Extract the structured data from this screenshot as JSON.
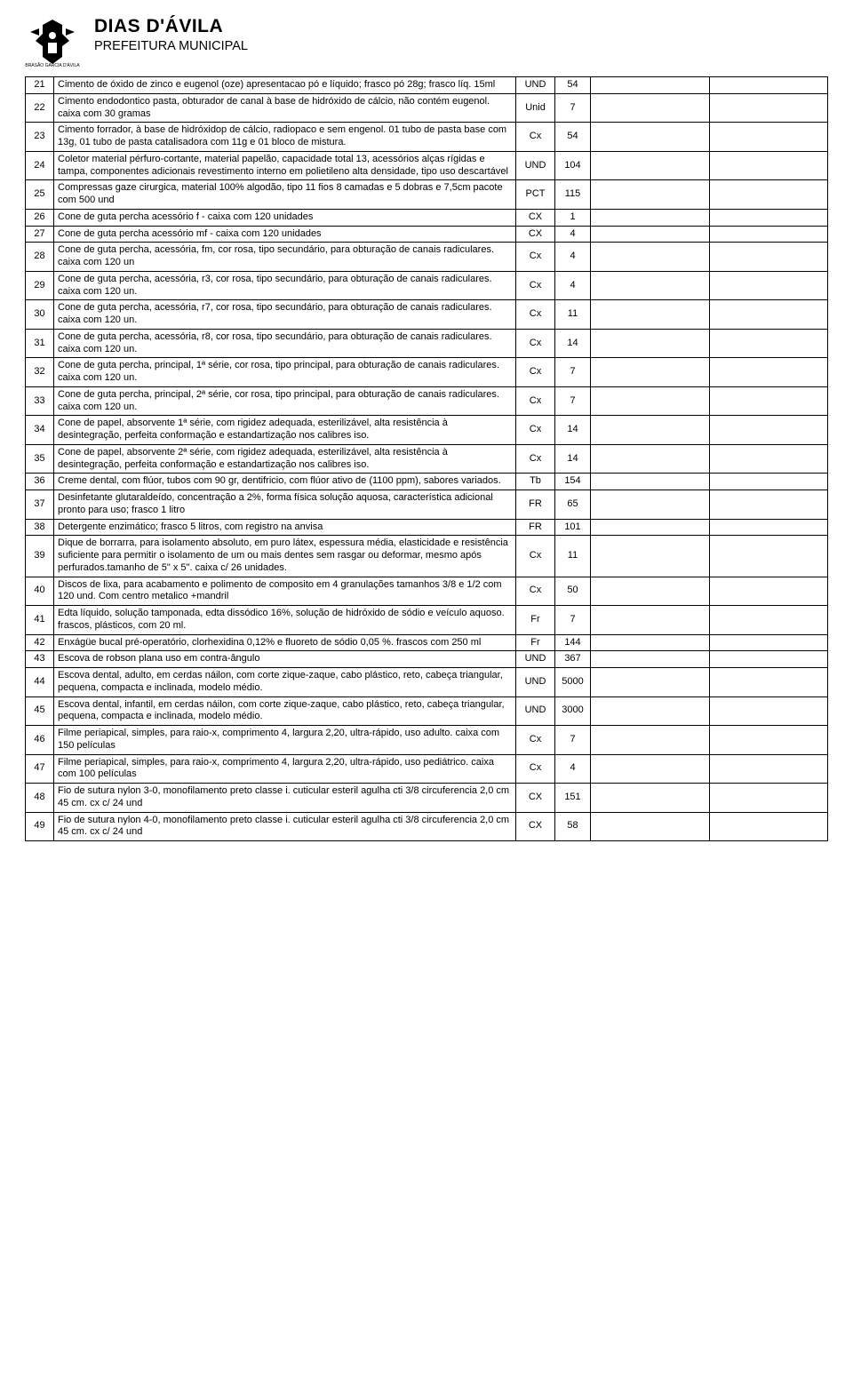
{
  "header": {
    "title": "DIAS D'ÁVILA",
    "subtitle": "PREFEITURA MUNICIPAL",
    "logo_caption": "BRASÃO GARCIA D'ÁVILA"
  },
  "table": {
    "columns": {
      "num_width": 32,
      "desc_width": 520,
      "unit_width": 44,
      "qty_width": 40
    },
    "font_size": 11,
    "border_color": "#000000",
    "background": "#ffffff"
  },
  "rows": [
    {
      "n": "21",
      "desc": "Cimento de óxido de zinco e eugenol (oze)  apresentacao pó e líquido; frasco pó 28g; frasco líq. 15ml",
      "unit": "UND",
      "qty": "54"
    },
    {
      "n": "22",
      "desc": "Cimento endodontico pasta, obturador de canal à base de hidróxido de cálcio, não contém eugenol. caixa com 30 gramas",
      "unit": "Unid",
      "qty": "7"
    },
    {
      "n": "23",
      "desc": "Cimento forrador, à base de hidróxidop de cálcio, radiopaco e sem engenol. 01 tubo de pasta base com 13g, 01 tubo de pasta catalisadora com 11g  e 01 bloco de mistura.",
      "unit": "Cx",
      "qty": "54"
    },
    {
      "n": "24",
      "desc": "Coletor material pérfuro-cortante, material papelão, capacidade total 13, acessórios alças rígidas e tampa, componentes adicionais revestimento interno em polietileno alta densidade, tipo uso descartável",
      "unit": "UND",
      "qty": "104"
    },
    {
      "n": "25",
      "desc": "Compressas gaze cirurgica, material 100% algodão, tipo 11 fios 8 camadas e 5 dobras e 7,5cm pacote com 500 und",
      "unit": "PCT",
      "qty": "115"
    },
    {
      "n": "26",
      "desc": "Cone de guta percha acessório f  - caixa com 120 unidades",
      "unit": "CX",
      "qty": "1"
    },
    {
      "n": "27",
      "desc": "Cone de guta percha acessório mf - caixa com 120 unidades",
      "unit": "CX",
      "qty": "4"
    },
    {
      "n": "28",
      "desc": "Cone de guta percha, acessória, fm, cor rosa, tipo secundário, para obturação de canais radiculares. caixa com 120 un",
      "unit": "Cx",
      "qty": "4"
    },
    {
      "n": "29",
      "desc": "Cone de guta percha, acessória, r3, cor rosa, tipo secundário, para obturação de canais radiculares. caixa com 120 un.",
      "unit": "Cx",
      "qty": "4"
    },
    {
      "n": "30",
      "desc": "Cone de guta percha, acessória, r7, cor rosa, tipo secundário, para obturação de canais radiculares. caixa com 120 un.",
      "unit": "Cx",
      "qty": "11"
    },
    {
      "n": "31",
      "desc": "Cone de guta percha, acessória, r8, cor rosa, tipo secundário, para obturação de canais radiculares. caixa com 120 un.",
      "unit": "Cx",
      "qty": "14"
    },
    {
      "n": "32",
      "desc": "Cone de guta percha, principal, 1ª série, cor rosa, tipo principal, para obturação de canais radiculares. caixa com 120 un.",
      "unit": "Cx",
      "qty": "7"
    },
    {
      "n": "33",
      "desc": "Cone de guta percha, principal, 2ª série, cor rosa, tipo principal, para obturação de canais radiculares. caixa com 120 un.",
      "unit": "Cx",
      "qty": "7"
    },
    {
      "n": "34",
      "desc": "Cone de papel, absorvente 1ª série, com  rigidez adequada, esterilizável, alta resistência à desintegração, perfeita conformação e estandartização nos calibres iso.",
      "unit": "Cx",
      "qty": "14"
    },
    {
      "n": "35",
      "desc": "Cone de papel, absorvente 2ª série, com rigidez adequada, esterilizável, alta resistência à desintegração, perfeita conformação e estandartização nos calibres iso.",
      "unit": "Cx",
      "qty": "14"
    },
    {
      "n": "36",
      "desc": "Creme dental, com flúor, tubos com 90 gr, dentifricio, com flúor ativo de (1100 ppm), sabores variados.",
      "unit": "Tb",
      "qty": "154"
    },
    {
      "n": "37",
      "desc": "Desinfetante  glutaraldeído, concentração a 2%, forma física solução aquosa, característica adicional pronto para uso; frasco 1 litro",
      "unit": "FR",
      "qty": "65"
    },
    {
      "n": "38",
      "desc": "Detergente enzimático;  frasco  5 litros, com registro na anvisa",
      "unit": "FR",
      "qty": "101"
    },
    {
      "n": "39",
      "desc": "Dique de borrarra, para isolamento absoluto, em puro látex, espessura média, elasticidade e resistência suficiente para permitir o isolamento de um ou mais dentes sem rasgar ou deformar, mesmo após perfurados.tamanho de 5\" x 5\". caixa c/ 26 unidades.",
      "unit": "Cx",
      "qty": "11"
    },
    {
      "n": "40",
      "desc": "Discos de lixa, para acabamento e polimento de composito em 4 granulações tamanhos 3/8 e 1/2 com 120 und. Com centro metalico +mandril",
      "unit": "Cx",
      "qty": "50"
    },
    {
      "n": "41",
      "desc": "Edta líquido, solução tamponada, edta dissódico 16%, solução de hidróxido de sódio e veículo aquoso. frascos, plásticos, com 20 ml.",
      "unit": "Fr",
      "qty": "7"
    },
    {
      "n": "42",
      "desc": "Enxágüe bucal pré-operatório, clorhexidina 0,12% e  fluoreto de sódio 0,05 %. frascos com 250 ml",
      "unit": "Fr",
      "qty": "144"
    },
    {
      "n": "43",
      "desc": "Escova de robson plana uso em contra-ângulo",
      "unit": "UND",
      "qty": "367"
    },
    {
      "n": "44",
      "desc": "Escova dental, adulto, em cerdas náilon, com corte zique-zaque, cabo plástico, reto, cabeça triangular, pequena, compacta e inclinada, modelo médio.",
      "unit": "UND",
      "qty": "5000"
    },
    {
      "n": "45",
      "desc": "Escova dental, infantil, em cerdas náilon, com corte zique-zaque, cabo plástico, reto, cabeça triangular, pequena, compacta e inclinada, modelo médio.",
      "unit": "UND",
      "qty": "3000"
    },
    {
      "n": "46",
      "desc": "Filme periapical, simples, para raio-x, comprimento 4, largura 2,20, ultra-rápido, uso adulto. caixa com 150 películas",
      "unit": "Cx",
      "qty": "7"
    },
    {
      "n": "47",
      "desc": "Filme periapical, simples, para raio-x, comprimento 4, largura 2,20, ultra-rápido, uso pediátrico. caixa com 100 películas",
      "unit": "Cx",
      "qty": "4"
    },
    {
      "n": "48",
      "desc": "Fio de sutura nylon 3-0, monofilamento preto classe i. cuticular esteril agulha cti 3/8 circuferencia 2,0 cm 45 cm. cx c/ 24 und",
      "unit": "CX",
      "qty": "151"
    },
    {
      "n": "49",
      "desc": "Fio de sutura nylon 4-0, monofilamento preto classe i. cuticular esteril agulha cti 3/8 circuferencia 2,0 cm 45 cm. cx c/ 24 und",
      "unit": "CX",
      "qty": "58"
    }
  ]
}
